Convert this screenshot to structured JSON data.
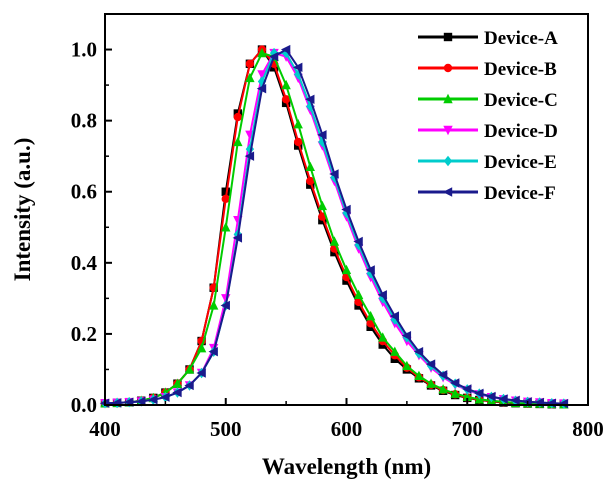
{
  "chart_data": {
    "type": "line",
    "title": "",
    "xlabel": "Wavelength (nm)",
    "ylabel": "Intensity (a.u.)",
    "xlim": [
      400,
      800
    ],
    "ylim": [
      0,
      1.1
    ],
    "x_ticks": [
      "400",
      "500",
      "600",
      "700",
      "800"
    ],
    "y_ticks": [
      "0.0",
      "0.2",
      "0.4",
      "0.6",
      "0.8",
      "1.0"
    ],
    "grid": false,
    "legend": "top-right",
    "x": [
      400,
      410,
      420,
      430,
      440,
      450,
      460,
      470,
      480,
      490,
      500,
      510,
      520,
      530,
      540,
      550,
      560,
      570,
      580,
      590,
      600,
      610,
      620,
      630,
      640,
      650,
      660,
      670,
      680,
      690,
      700,
      710,
      720,
      730,
      740,
      750,
      760,
      770,
      780
    ],
    "series": [
      {
        "name": "Device-A",
        "color": "#000000",
        "marker": "square",
        "values": [
          0.005,
          0.006,
          0.008,
          0.012,
          0.02,
          0.035,
          0.06,
          0.1,
          0.18,
          0.33,
          0.6,
          0.82,
          0.96,
          1.0,
          0.95,
          0.85,
          0.73,
          0.62,
          0.52,
          0.43,
          0.35,
          0.28,
          0.22,
          0.17,
          0.13,
          0.1,
          0.075,
          0.055,
          0.04,
          0.028,
          0.02,
          0.014,
          0.01,
          0.007,
          0.005,
          0.004,
          0.003,
          0.002,
          0.002
        ]
      },
      {
        "name": "Device-B",
        "color": "#ff0000",
        "marker": "circle",
        "values": [
          0.005,
          0.006,
          0.008,
          0.012,
          0.02,
          0.035,
          0.06,
          0.1,
          0.18,
          0.33,
          0.58,
          0.81,
          0.96,
          1.0,
          0.96,
          0.86,
          0.74,
          0.63,
          0.53,
          0.44,
          0.36,
          0.29,
          0.23,
          0.18,
          0.14,
          0.105,
          0.078,
          0.057,
          0.042,
          0.03,
          0.021,
          0.015,
          0.011,
          0.008,
          0.006,
          0.004,
          0.003,
          0.002,
          0.002
        ]
      },
      {
        "name": "Device-C",
        "color": "#00cc00",
        "marker": "triangle-up",
        "values": [
          0.005,
          0.006,
          0.008,
          0.012,
          0.02,
          0.035,
          0.06,
          0.1,
          0.16,
          0.28,
          0.5,
          0.74,
          0.92,
          0.99,
          0.98,
          0.9,
          0.79,
          0.67,
          0.56,
          0.46,
          0.38,
          0.31,
          0.25,
          0.19,
          0.15,
          0.11,
          0.082,
          0.06,
          0.044,
          0.032,
          0.023,
          0.016,
          0.012,
          0.009,
          0.006,
          0.005,
          0.004,
          0.003,
          0.002
        ]
      },
      {
        "name": "Device-D",
        "color": "#ff00ff",
        "marker": "triangle-down",
        "values": [
          0.005,
          0.006,
          0.008,
          0.01,
          0.015,
          0.022,
          0.035,
          0.055,
          0.09,
          0.16,
          0.3,
          0.52,
          0.76,
          0.93,
          0.99,
          0.98,
          0.92,
          0.83,
          0.73,
          0.63,
          0.53,
          0.44,
          0.36,
          0.29,
          0.23,
          0.18,
          0.14,
          0.105,
          0.078,
          0.057,
          0.042,
          0.03,
          0.022,
          0.016,
          0.012,
          0.009,
          0.007,
          0.005,
          0.004
        ]
      },
      {
        "name": "Device-E",
        "color": "#00cccc",
        "marker": "diamond",
        "values": [
          0.005,
          0.006,
          0.008,
          0.01,
          0.015,
          0.022,
          0.035,
          0.055,
          0.09,
          0.15,
          0.28,
          0.48,
          0.72,
          0.91,
          0.99,
          0.99,
          0.93,
          0.84,
          0.74,
          0.64,
          0.54,
          0.45,
          0.37,
          0.3,
          0.24,
          0.19,
          0.145,
          0.11,
          0.082,
          0.06,
          0.044,
          0.032,
          0.023,
          0.017,
          0.012,
          0.009,
          0.007,
          0.005,
          0.004
        ]
      },
      {
        "name": "Device-F",
        "color": "#1a1a8c",
        "marker": "triangle-left",
        "values": [
          0.005,
          0.006,
          0.008,
          0.01,
          0.015,
          0.022,
          0.035,
          0.055,
          0.09,
          0.15,
          0.28,
          0.47,
          0.7,
          0.89,
          0.98,
          1.0,
          0.95,
          0.86,
          0.76,
          0.65,
          0.55,
          0.46,
          0.38,
          0.31,
          0.25,
          0.195,
          0.15,
          0.115,
          0.085,
          0.062,
          0.045,
          0.033,
          0.024,
          0.017,
          0.013,
          0.009,
          0.007,
          0.005,
          0.004
        ]
      }
    ]
  }
}
